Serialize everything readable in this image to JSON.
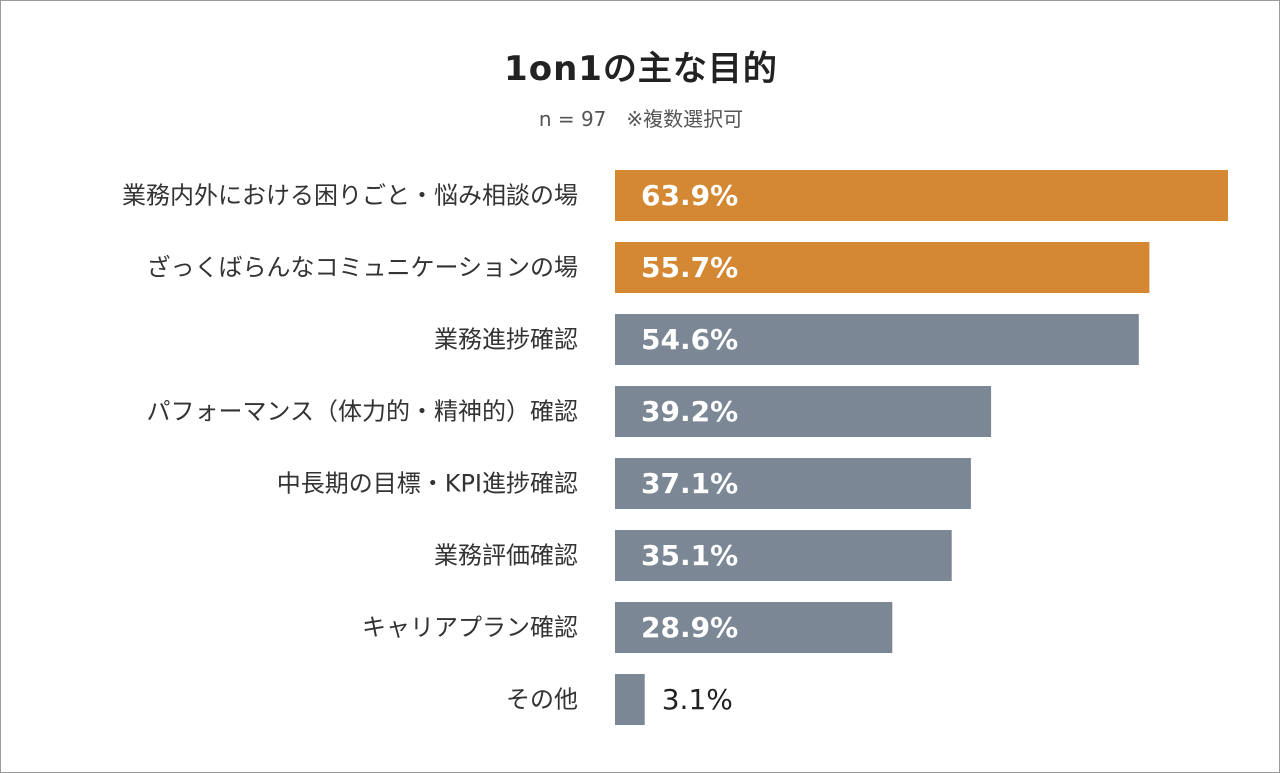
{
  "chart_data": {
    "type": "bar",
    "orientation": "horizontal",
    "title": "1on1の主な目的",
    "subtitle": "n = 97　※複数選択可",
    "categories": [
      "業務内外における困りごと・悩み相談の場",
      "ざっくばらんなコミュニケーションの場",
      "業務進捗確認",
      "パフォーマンス（体力的・精神的）確認",
      "中長期の目標・KPI進捗確認",
      "業務評価確認",
      "キャリアプラン確認",
      "その他"
    ],
    "values": [
      63.9,
      55.7,
      54.6,
      39.2,
      37.1,
      35.1,
      28.9,
      3.1
    ],
    "value_labels": [
      "63.9%",
      "55.7%",
      "54.6%",
      "39.2%",
      "37.1%",
      "35.1%",
      "28.9%",
      "3.1%"
    ],
    "value_unit": "%",
    "xlim": [
      0,
      64
    ],
    "highlight_count": 2,
    "colors": {
      "highlight": "#d48833",
      "default": "#7b8794"
    },
    "grid": false,
    "legend": "none"
  }
}
